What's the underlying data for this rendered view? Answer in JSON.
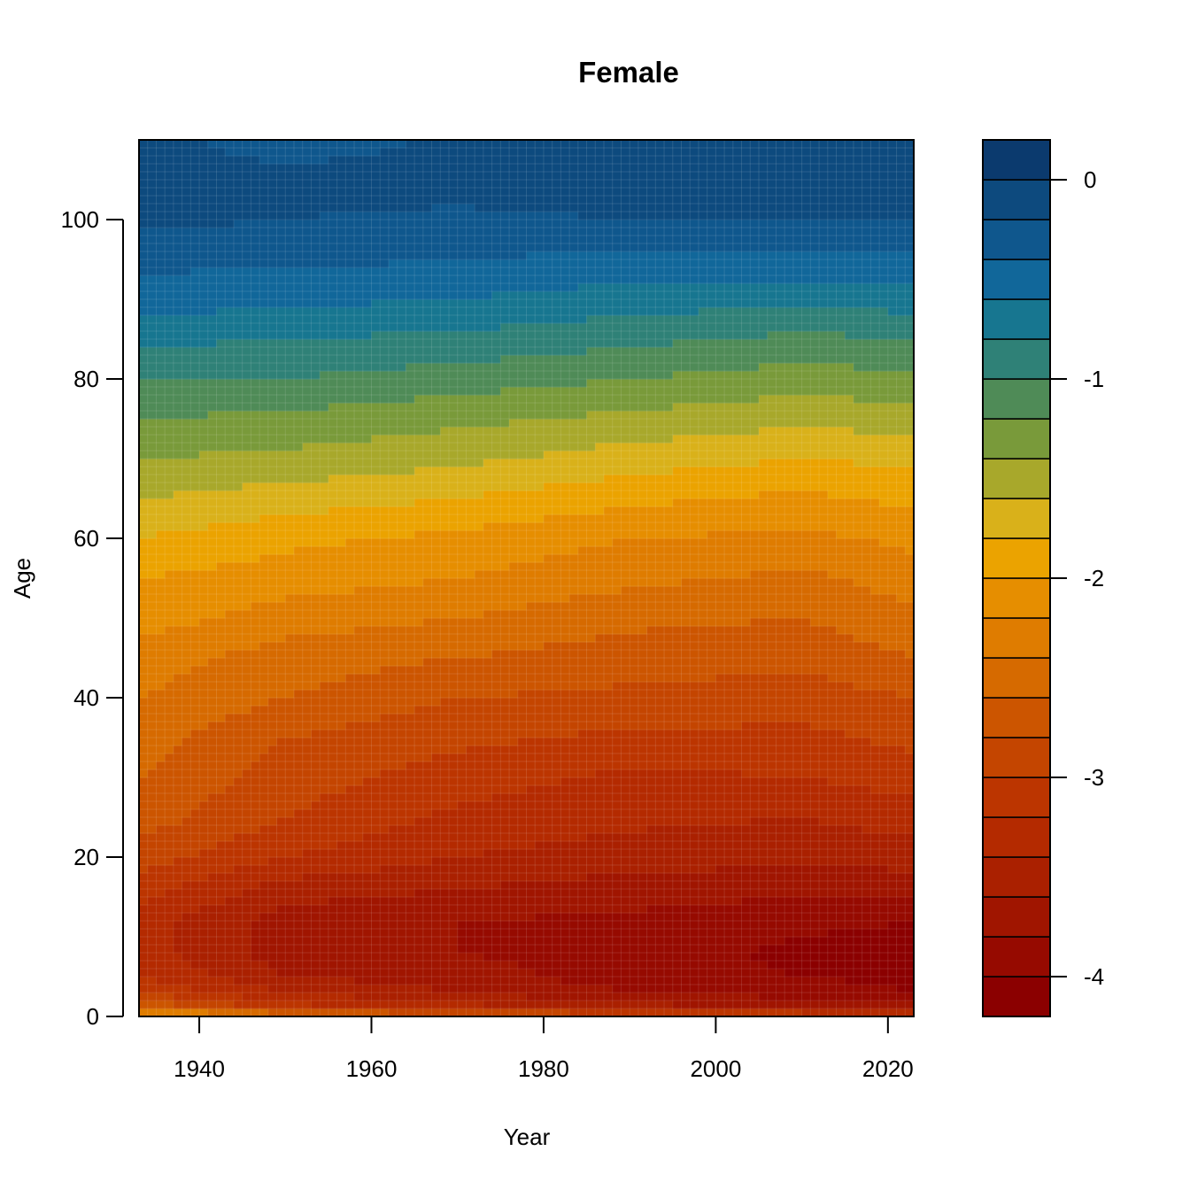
{
  "chart_data": {
    "type": "heatmap",
    "title": "Female",
    "xlabel": "Year",
    "ylabel": "Age",
    "xlim": [
      1933,
      2023
    ],
    "ylim": [
      0,
      110
    ],
    "x_ticks": [
      {
        "value": 1940,
        "label": "1940"
      },
      {
        "value": 1960,
        "label": "1960"
      },
      {
        "value": 1980,
        "label": "1980"
      },
      {
        "value": 2000,
        "label": "2000"
      },
      {
        "value": 2020,
        "label": "2020"
      }
    ],
    "y_ticks": [
      {
        "value": 0,
        "label": "0"
      },
      {
        "value": 20,
        "label": "20"
      },
      {
        "value": 40,
        "label": "40"
      },
      {
        "value": 60,
        "label": "60"
      },
      {
        "value": 80,
        "label": "80"
      },
      {
        "value": 100,
        "label": "100"
      }
    ],
    "colorbar": {
      "range": [
        -4.2,
        0.2
      ],
      "level_step": 0.2,
      "ticks": [
        {
          "value": 0,
          "label": "0"
        },
        {
          "value": -1,
          "label": "-1"
        },
        {
          "value": -2,
          "label": "-2"
        },
        {
          "value": -3,
          "label": "-3"
        },
        {
          "value": -4,
          "label": "-4"
        }
      ],
      "colors": [
        "#8b0000",
        "#960a00",
        "#a01500",
        "#aa2000",
        "#b42a00",
        "#bc3500",
        "#c44500",
        "#cc5500",
        "#d66a00",
        "#df7c00",
        "#e68e00",
        "#eba300",
        "#d9b11a",
        "#a8a82b",
        "#799a3a",
        "#4f8b57",
        "#2f8177",
        "#177690",
        "#11679a",
        "#0f578d",
        "#0d4a7e",
        "#0b3a6e"
      ]
    },
    "profile_ages": [
      0,
      1,
      3,
      5,
      8,
      12,
      16,
      20,
      25,
      30,
      35,
      40,
      45,
      50,
      55,
      60,
      65,
      70,
      75,
      80,
      85,
      90,
      95,
      100,
      105,
      110
    ],
    "profiles": [
      {
        "year": 1933,
        "values": [
          -1.8,
          -2.6,
          -3.0,
          -3.2,
          -3.3,
          -3.3,
          -3.1,
          -2.9,
          -2.7,
          -2.6,
          -2.5,
          -2.4,
          -2.3,
          -2.1,
          -2.0,
          -1.8,
          -1.6,
          -1.4,
          -1.2,
          -1.0,
          -0.75,
          -0.5,
          -0.35,
          -0.15,
          -0.05,
          -0.1
        ]
      },
      {
        "year": 1950,
        "values": [
          -2.2,
          -3.1,
          -3.4,
          -3.6,
          -3.7,
          -3.7,
          -3.5,
          -3.2,
          -3.0,
          -2.9,
          -2.8,
          -2.6,
          -2.5,
          -2.3,
          -2.1,
          -1.95,
          -1.7,
          -1.45,
          -1.25,
          -1.0,
          -0.8,
          -0.55,
          -0.35,
          -0.2,
          -0.1,
          -0.35
        ]
      },
      {
        "year": 1970,
        "values": [
          -2.5,
          -3.3,
          -3.6,
          -3.7,
          -3.8,
          -3.8,
          -3.6,
          -3.4,
          -3.25,
          -3.1,
          -2.95,
          -2.8,
          -2.6,
          -2.4,
          -2.2,
          -2.05,
          -1.8,
          -1.55,
          -1.35,
          -1.1,
          -0.85,
          -0.6,
          -0.4,
          -0.25,
          -0.1,
          -0.15
        ]
      },
      {
        "year": 1990,
        "values": [
          -2.6,
          -3.5,
          -3.8,
          -3.9,
          -3.9,
          -3.85,
          -3.7,
          -3.5,
          -3.35,
          -3.25,
          -3.05,
          -2.85,
          -2.7,
          -2.55,
          -2.35,
          -2.2,
          -1.95,
          -1.7,
          -1.45,
          -1.2,
          -0.95,
          -0.7,
          -0.45,
          -0.2,
          -0.05,
          -0.1
        ]
      },
      {
        "year": 2010,
        "values": [
          -2.8,
          -3.6,
          -3.9,
          -4.0,
          -4.05,
          -3.95,
          -3.75,
          -3.55,
          -3.4,
          -3.2,
          -3.05,
          -2.9,
          -2.75,
          -2.6,
          -2.45,
          -2.25,
          -2.05,
          -1.8,
          -1.55,
          -1.3,
          -1.05,
          -0.75,
          -0.45,
          -0.2,
          -0.05,
          0.0
        ]
      },
      {
        "year": 2023,
        "values": [
          -2.9,
          -3.7,
          -4.0,
          -4.05,
          -4.1,
          -4.0,
          -3.75,
          -3.5,
          -3.3,
          -3.1,
          -2.95,
          -2.8,
          -2.6,
          -2.45,
          -2.3,
          -2.15,
          -1.95,
          -1.75,
          -1.5,
          -1.25,
          -1.0,
          -0.7,
          -0.45,
          -0.2,
          -0.05,
          0.0
        ]
      }
    ]
  }
}
